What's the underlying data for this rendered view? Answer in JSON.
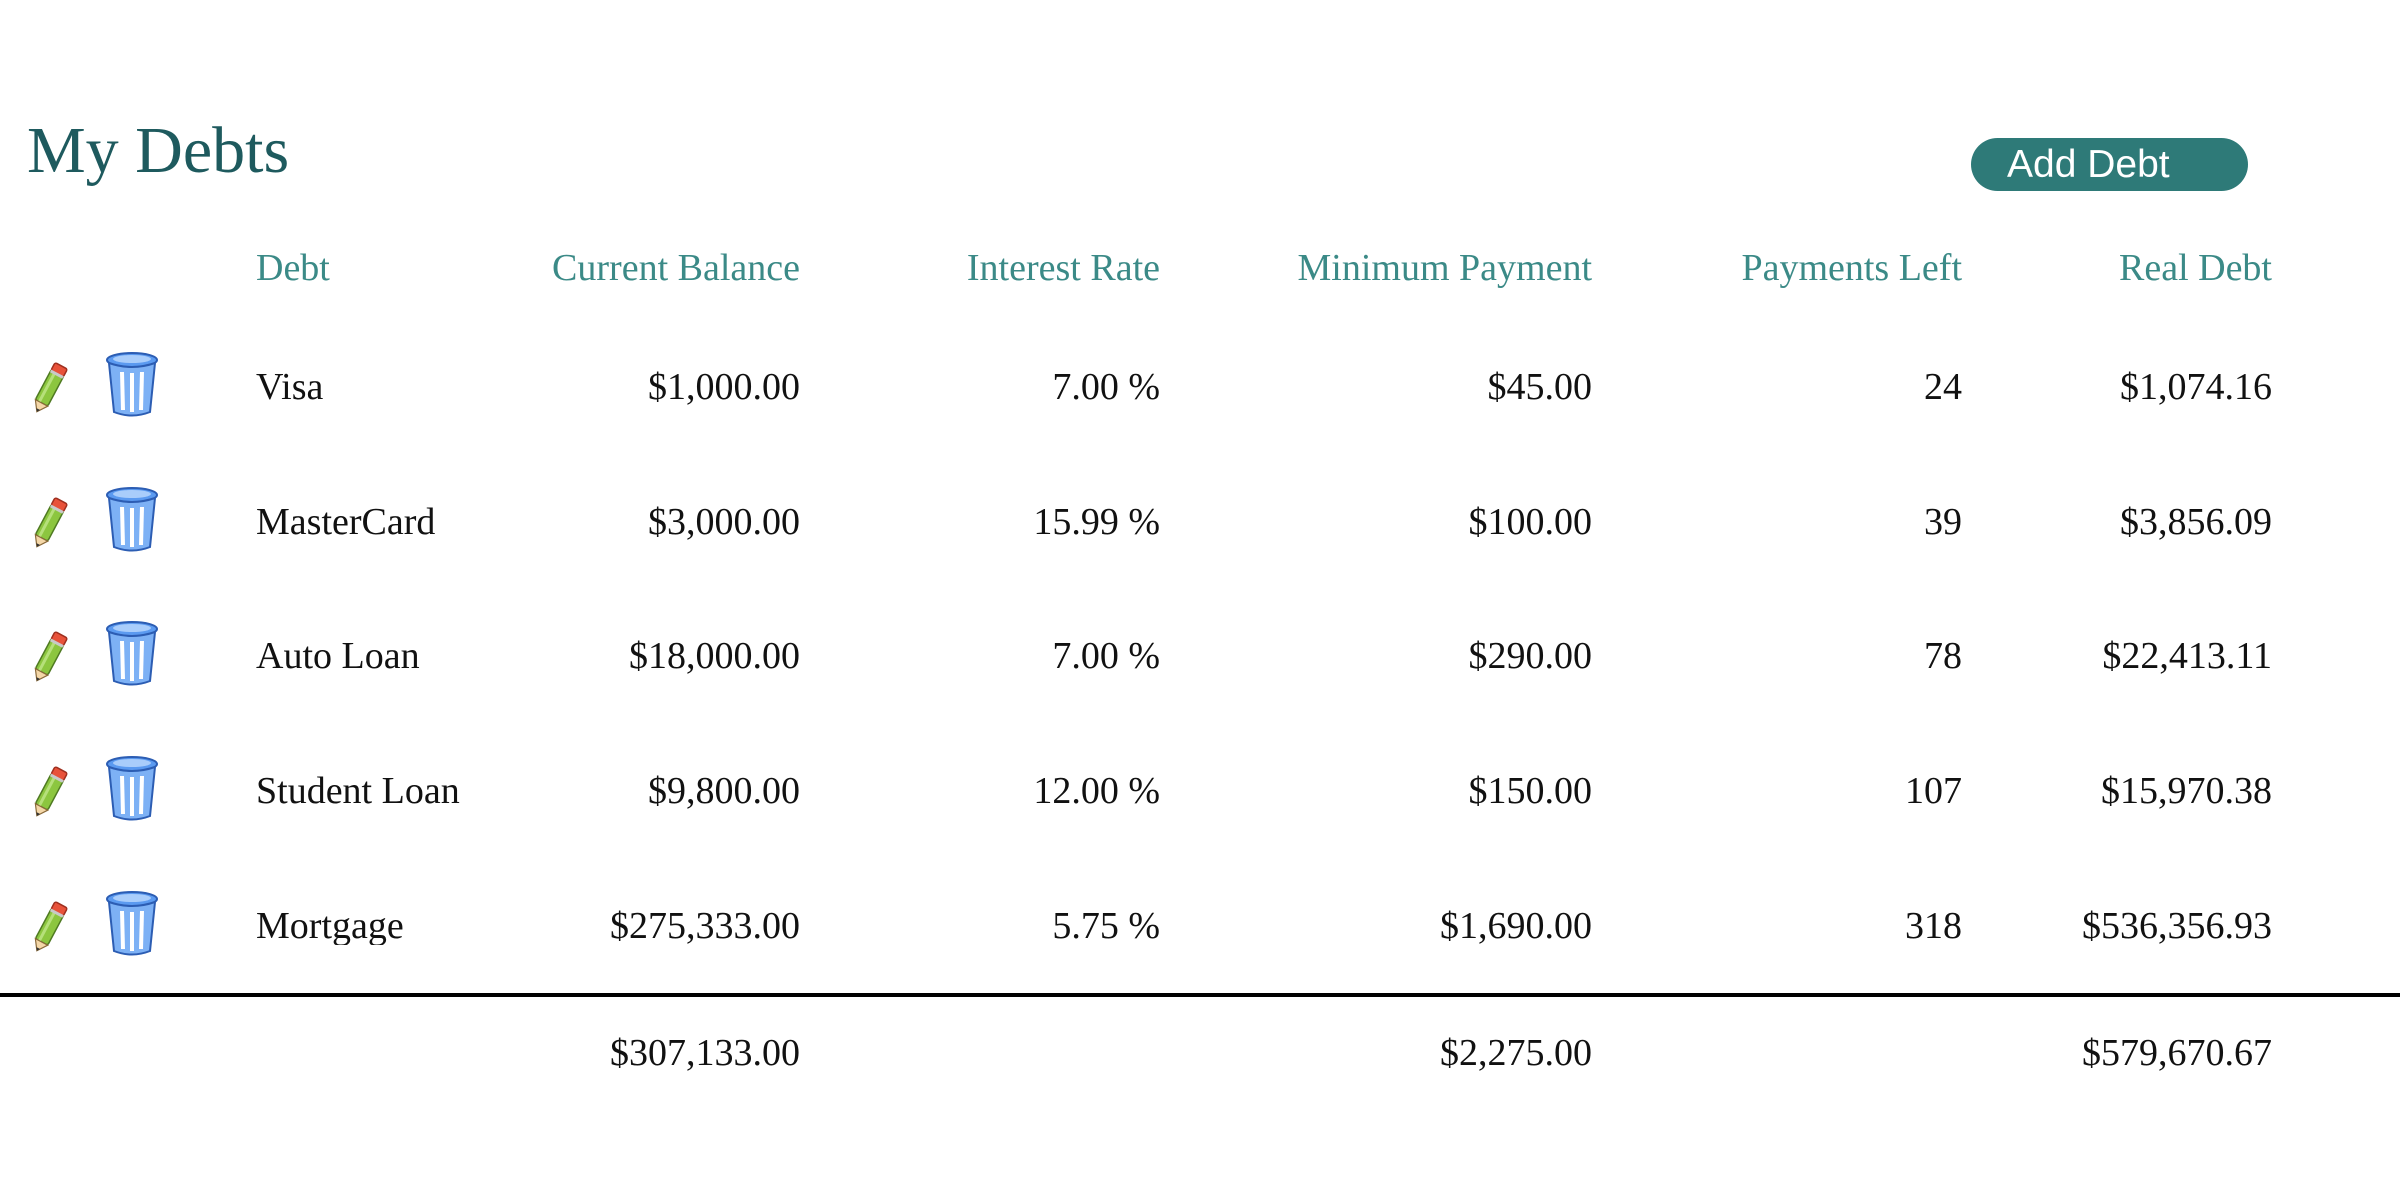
{
  "page": {
    "title": "My Debts",
    "add_button_label": "Add Debt"
  },
  "table": {
    "headers": {
      "debt": "Debt",
      "current_balance": "Current Balance",
      "interest_rate": "Interest Rate",
      "minimum_payment": "Minimum Payment",
      "payments_left": "Payments Left",
      "real_debt": "Real Debt"
    },
    "rows": [
      {
        "debt": "Visa",
        "current_balance": "$1,000.00",
        "interest_rate": "7.00 %",
        "minimum_payment": "$45.00",
        "payments_left": "24",
        "real_debt": "$1,074.16"
      },
      {
        "debt": "MasterCard",
        "current_balance": "$3,000.00",
        "interest_rate": "15.99 %",
        "minimum_payment": "$100.00",
        "payments_left": "39",
        "real_debt": "$3,856.09"
      },
      {
        "debt": "Auto Loan",
        "current_balance": "$18,000.00",
        "interest_rate": "7.00 %",
        "minimum_payment": "$290.00",
        "payments_left": "78",
        "real_debt": "$22,413.11"
      },
      {
        "debt": "Student Loan",
        "current_balance": "$9,800.00",
        "interest_rate": "12.00 %",
        "minimum_payment": "$150.00",
        "payments_left": "107",
        "real_debt": "$15,970.38"
      },
      {
        "debt": "Mortgage",
        "current_balance": "$275,333.00",
        "interest_rate": "5.75 %",
        "minimum_payment": "$1,690.00",
        "payments_left": "318",
        "real_debt": "$536,356.93"
      }
    ],
    "totals": {
      "current_balance": "$307,133.00",
      "minimum_payment": "$2,275.00",
      "real_debt": "$579,670.67"
    }
  },
  "icons": {
    "edit": "pencil-icon",
    "delete": "trash-icon"
  },
  "colors": {
    "title": "#1e5a5e",
    "header": "#3b8a87",
    "button": "#2e7a78",
    "button_text": "#ffffff",
    "pencil_body": "#8cc63f",
    "pencil_tip": "#e8523a",
    "trash": "#3f7fe0"
  }
}
